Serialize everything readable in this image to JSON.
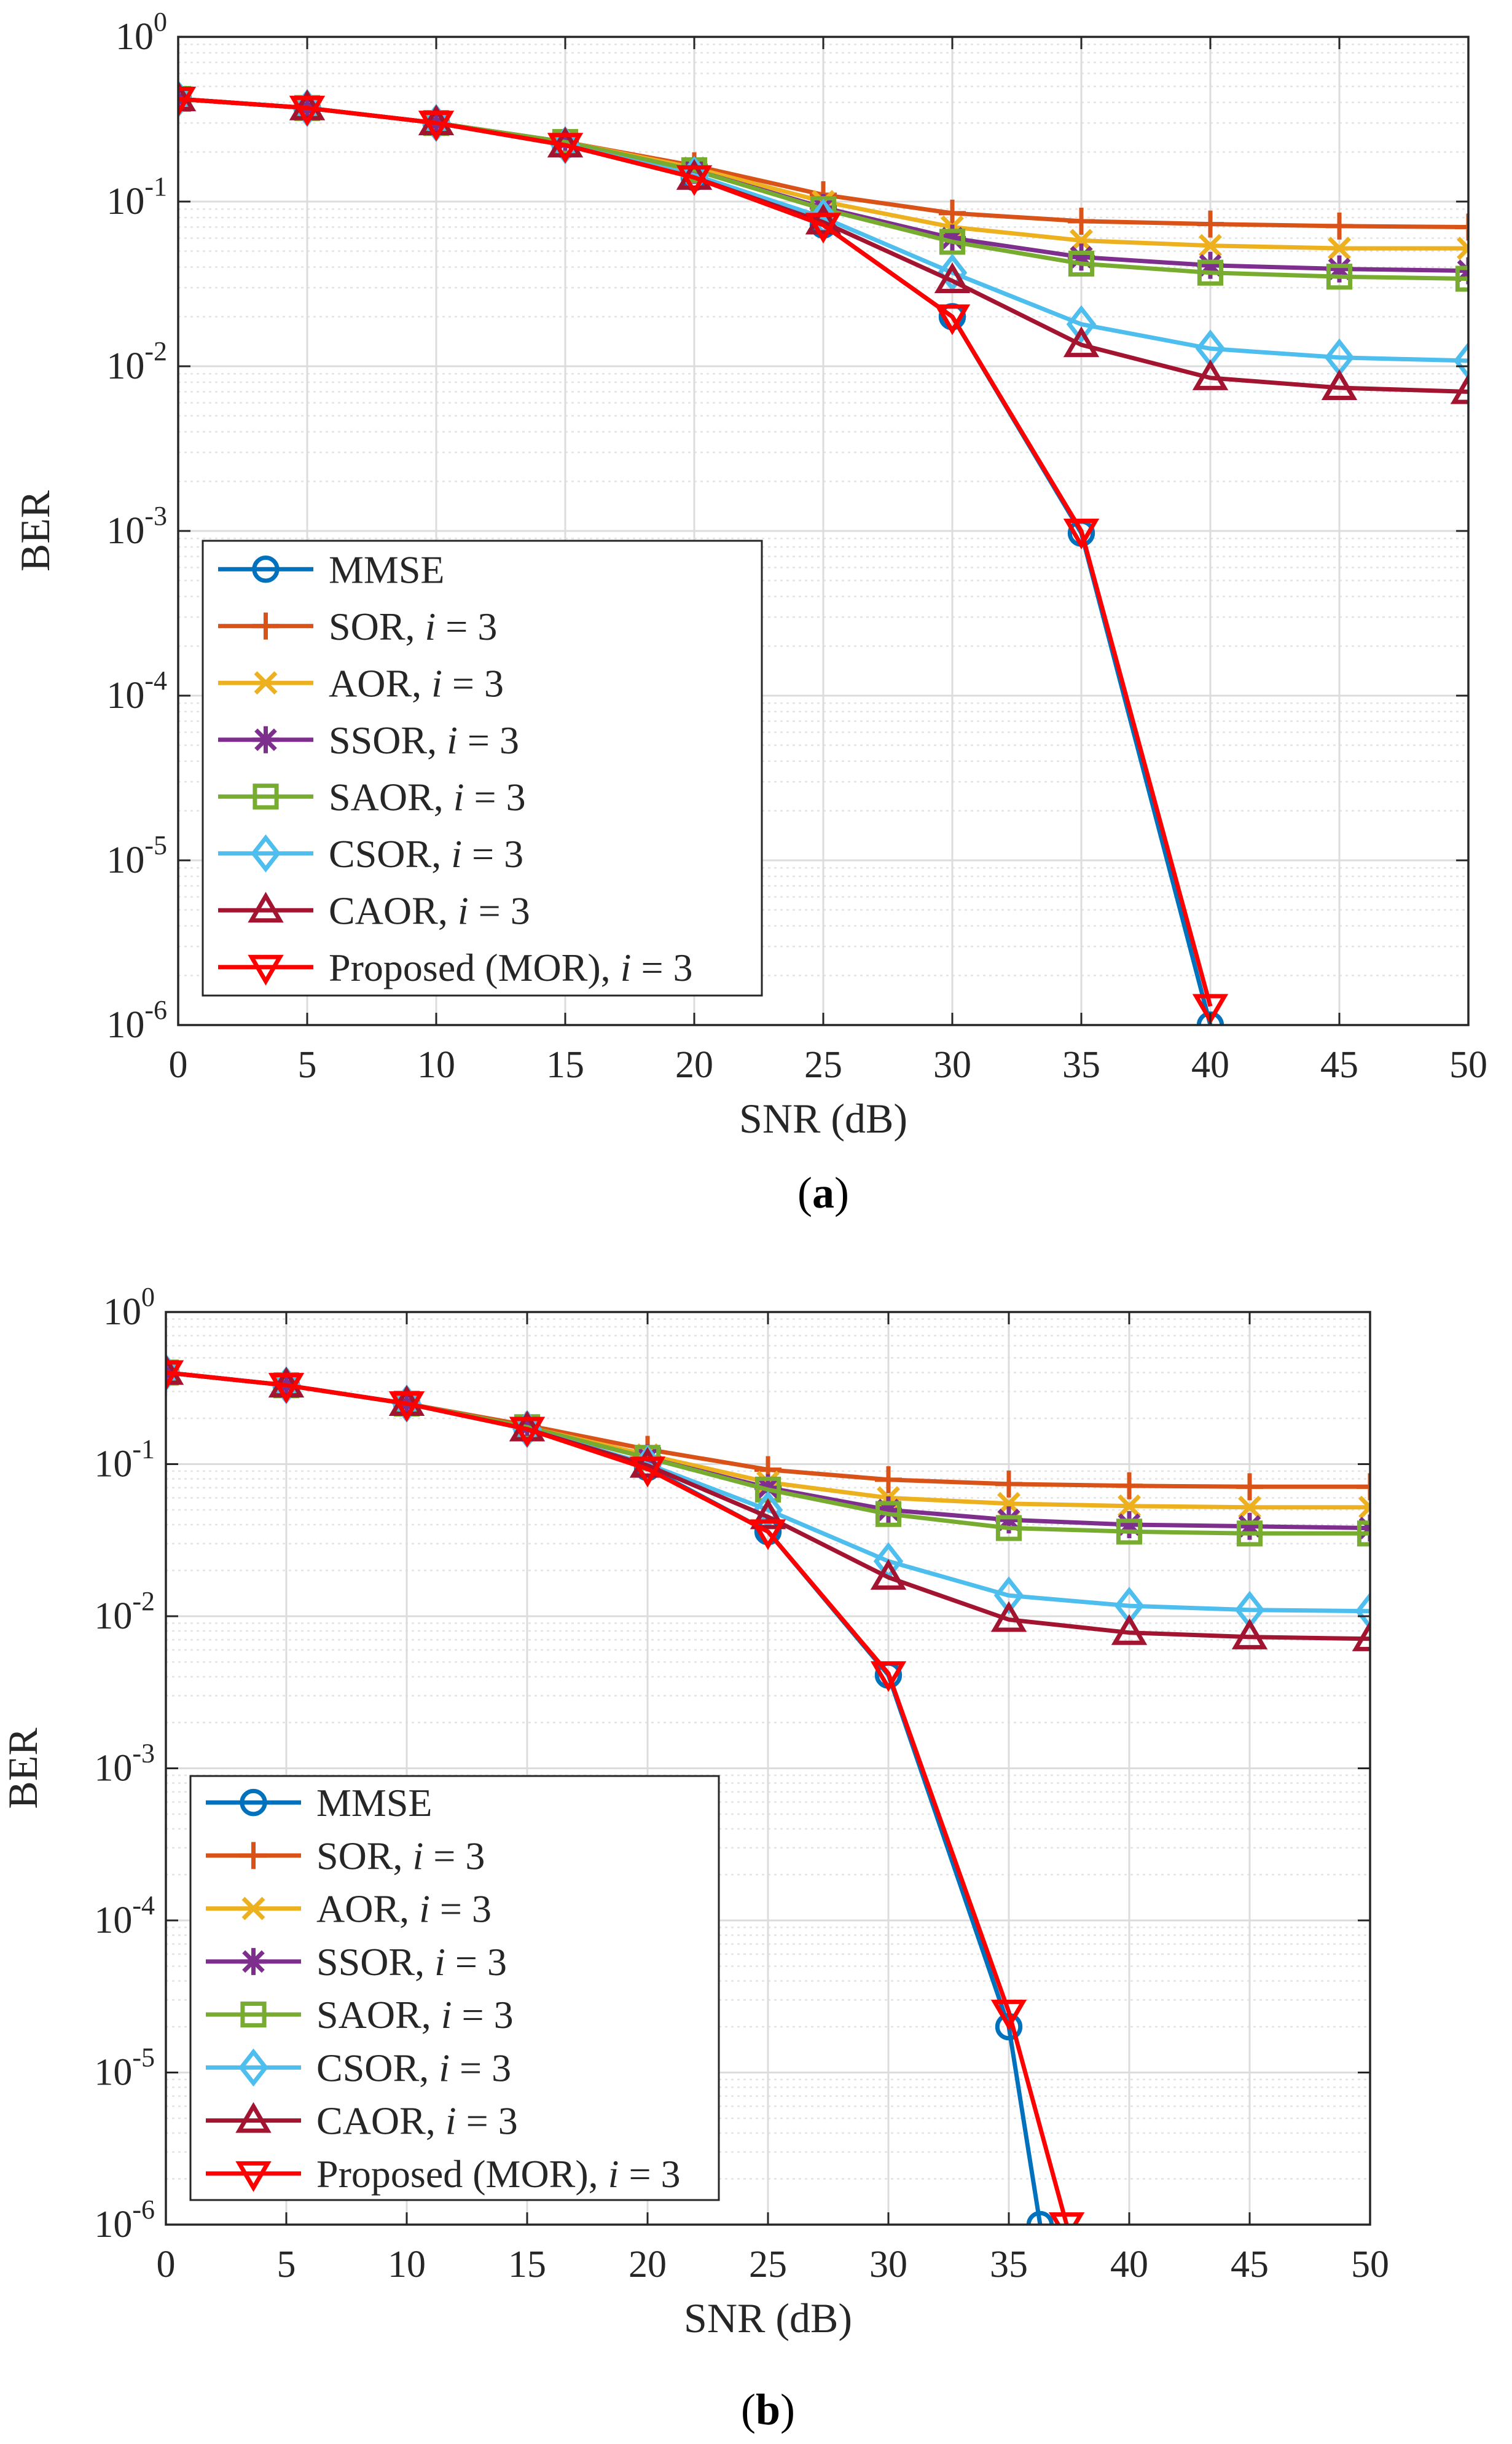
{
  "chart_data": [
    {
      "type": "line",
      "xlabel": "SNR (dB)",
      "ylabel": "BER",
      "yscale": "log",
      "xlim": [
        0,
        50
      ],
      "ylim": [
        1e-06,
        1
      ],
      "xticks": [
        0,
        5,
        10,
        15,
        20,
        25,
        30,
        35,
        40,
        45,
        50
      ],
      "xtick_labels": [
        "0",
        "5",
        "10",
        "15",
        "20",
        "25",
        "30",
        "35",
        "40",
        "45",
        "50"
      ],
      "ytick_exponents": [
        "0",
        "-1",
        "-2",
        "-3",
        "-4",
        "-5",
        "-6"
      ],
      "ytick_base": "10",
      "grid": true,
      "caption": "a",
      "legend_position": "bottom-left",
      "series": [
        {
          "name": "MMSE",
          "suffix": "",
          "color": "#0072BD",
          "marker": "circle",
          "x": [
            0,
            5,
            10,
            15,
            20,
            25,
            30,
            35,
            40
          ],
          "y": [
            0.42,
            0.37,
            0.3,
            0.22,
            0.14,
            0.072,
            0.02,
            0.00097,
            1e-06
          ]
        },
        {
          "name": "SOR, ",
          "suffix": " = 3",
          "color": "#D95319",
          "marker": "plus",
          "x": [
            0,
            5,
            10,
            15,
            20,
            25,
            30,
            35,
            40,
            45,
            50
          ],
          "y": [
            0.42,
            0.37,
            0.3,
            0.23,
            0.165,
            0.11,
            0.085,
            0.076,
            0.073,
            0.071,
            0.07
          ]
        },
        {
          "name": "AOR, ",
          "suffix": " = 3",
          "color": "#EDB120",
          "marker": "x",
          "x": [
            0,
            5,
            10,
            15,
            20,
            25,
            30,
            35,
            40,
            45,
            50
          ],
          "y": [
            0.42,
            0.37,
            0.3,
            0.23,
            0.16,
            0.1,
            0.07,
            0.058,
            0.054,
            0.052,
            0.052
          ]
        },
        {
          "name": "SSOR, ",
          "suffix": " = 3",
          "color": "#7E2F8E",
          "marker": "star",
          "x": [
            0,
            5,
            10,
            15,
            20,
            25,
            30,
            35,
            40,
            45,
            50
          ],
          "y": [
            0.42,
            0.37,
            0.3,
            0.23,
            0.155,
            0.092,
            0.06,
            0.046,
            0.041,
            0.039,
            0.038
          ]
        },
        {
          "name": "SAOR, ",
          "suffix": " = 3",
          "color": "#77AC30",
          "marker": "square",
          "x": [
            0,
            5,
            10,
            15,
            20,
            25,
            30,
            35,
            40,
            45,
            50
          ],
          "y": [
            0.42,
            0.37,
            0.3,
            0.23,
            0.155,
            0.09,
            0.057,
            0.042,
            0.037,
            0.035,
            0.034
          ]
        },
        {
          "name": "CSOR, ",
          "suffix": " = 3",
          "color": "#4DBEEE",
          "marker": "diamond",
          "x": [
            0,
            5,
            10,
            15,
            20,
            25,
            30,
            35,
            40,
            45,
            50
          ],
          "y": [
            0.42,
            0.37,
            0.3,
            0.22,
            0.145,
            0.08,
            0.037,
            0.018,
            0.0128,
            0.0113,
            0.0108
          ]
        },
        {
          "name": "CAOR, ",
          "suffix": " = 3",
          "color": "#A2142F",
          "marker": "triangle-up",
          "x": [
            0,
            5,
            10,
            15,
            20,
            25,
            30,
            35,
            40,
            45,
            50
          ],
          "y": [
            0.42,
            0.37,
            0.3,
            0.22,
            0.14,
            0.075,
            0.033,
            0.0135,
            0.0085,
            0.0074,
            0.007
          ]
        },
        {
          "name": "Proposed (MOR), ",
          "suffix": " = 3",
          "color": "#FF0000",
          "marker": "triangle-down",
          "x": [
            0,
            5,
            10,
            15,
            20,
            25,
            30,
            35,
            40
          ],
          "y": [
            0.42,
            0.37,
            0.3,
            0.22,
            0.14,
            0.072,
            0.02,
            0.001,
            1.3e-06
          ]
        }
      ]
    },
    {
      "type": "line",
      "xlabel": "SNR (dB)",
      "ylabel": "BER",
      "yscale": "log",
      "xlim": [
        0,
        50
      ],
      "ylim": [
        1e-06,
        1
      ],
      "xticks": [
        0,
        5,
        10,
        15,
        20,
        25,
        30,
        35,
        40,
        45,
        50
      ],
      "xtick_labels": [
        "0",
        "5",
        "10",
        "15",
        "20",
        "25",
        "30",
        "35",
        "40",
        "45",
        "50"
      ],
      "ytick_exponents": [
        "0",
        "-1",
        "-2",
        "-3",
        "-4",
        "-5",
        "-6"
      ],
      "ytick_base": "10",
      "grid": true,
      "caption": "b",
      "legend_position": "bottom-left",
      "series": [
        {
          "name": "MMSE",
          "suffix": "",
          "color": "#0072BD",
          "marker": "circle",
          "x": [
            0,
            5,
            10,
            15,
            20,
            25,
            30,
            35,
            36.3
          ],
          "y": [
            0.4,
            0.33,
            0.25,
            0.17,
            0.095,
            0.036,
            0.0041,
            2e-05,
            1e-06
          ]
        },
        {
          "name": "SOR, ",
          "suffix": " = 3",
          "color": "#D95319",
          "marker": "plus",
          "x": [
            0,
            5,
            10,
            15,
            20,
            25,
            30,
            35,
            40,
            45,
            50
          ],
          "y": [
            0.4,
            0.33,
            0.25,
            0.18,
            0.125,
            0.092,
            0.079,
            0.074,
            0.072,
            0.071,
            0.071
          ]
        },
        {
          "name": "AOR, ",
          "suffix": " = 3",
          "color": "#EDB120",
          "marker": "x",
          "x": [
            0,
            5,
            10,
            15,
            20,
            25,
            30,
            35,
            40,
            45,
            50
          ],
          "y": [
            0.4,
            0.33,
            0.25,
            0.175,
            0.115,
            0.076,
            0.06,
            0.055,
            0.053,
            0.052,
            0.052
          ]
        },
        {
          "name": "SSOR, ",
          "suffix": " = 3",
          "color": "#7E2F8E",
          "marker": "star",
          "x": [
            0,
            5,
            10,
            15,
            20,
            25,
            30,
            35,
            40,
            45,
            50
          ],
          "y": [
            0.4,
            0.33,
            0.25,
            0.175,
            0.11,
            0.07,
            0.05,
            0.043,
            0.04,
            0.039,
            0.038
          ]
        },
        {
          "name": "SAOR, ",
          "suffix": " = 3",
          "color": "#77AC30",
          "marker": "square",
          "x": [
            0,
            5,
            10,
            15,
            20,
            25,
            30,
            35,
            40,
            45,
            50
          ],
          "y": [
            0.4,
            0.33,
            0.25,
            0.175,
            0.11,
            0.068,
            0.047,
            0.038,
            0.036,
            0.035,
            0.035
          ]
        },
        {
          "name": "CSOR, ",
          "suffix": " = 3",
          "color": "#4DBEEE",
          "marker": "diamond",
          "x": [
            0,
            5,
            10,
            15,
            20,
            25,
            30,
            35,
            40,
            45,
            50
          ],
          "y": [
            0.4,
            0.33,
            0.25,
            0.17,
            0.1,
            0.05,
            0.023,
            0.0137,
            0.0117,
            0.011,
            0.0108
          ]
        },
        {
          "name": "CAOR, ",
          "suffix": " = 3",
          "color": "#A2142F",
          "marker": "triangle-up",
          "x": [
            0,
            5,
            10,
            15,
            20,
            25,
            30,
            35,
            40,
            45,
            50
          ],
          "y": [
            0.4,
            0.33,
            0.25,
            0.17,
            0.098,
            0.045,
            0.018,
            0.0095,
            0.0078,
            0.0073,
            0.0071
          ]
        },
        {
          "name": "Proposed (MOR), ",
          "suffix": " = 3",
          "color": "#FF0000",
          "marker": "triangle-down",
          "x": [
            0,
            5,
            10,
            15,
            20,
            25,
            30,
            35,
            37.4
          ],
          "y": [
            0.4,
            0.33,
            0.25,
            0.17,
            0.093,
            0.036,
            0.0042,
            2.5e-05,
            1e-06
          ]
        }
      ]
    }
  ],
  "legend_italic_var": "i"
}
